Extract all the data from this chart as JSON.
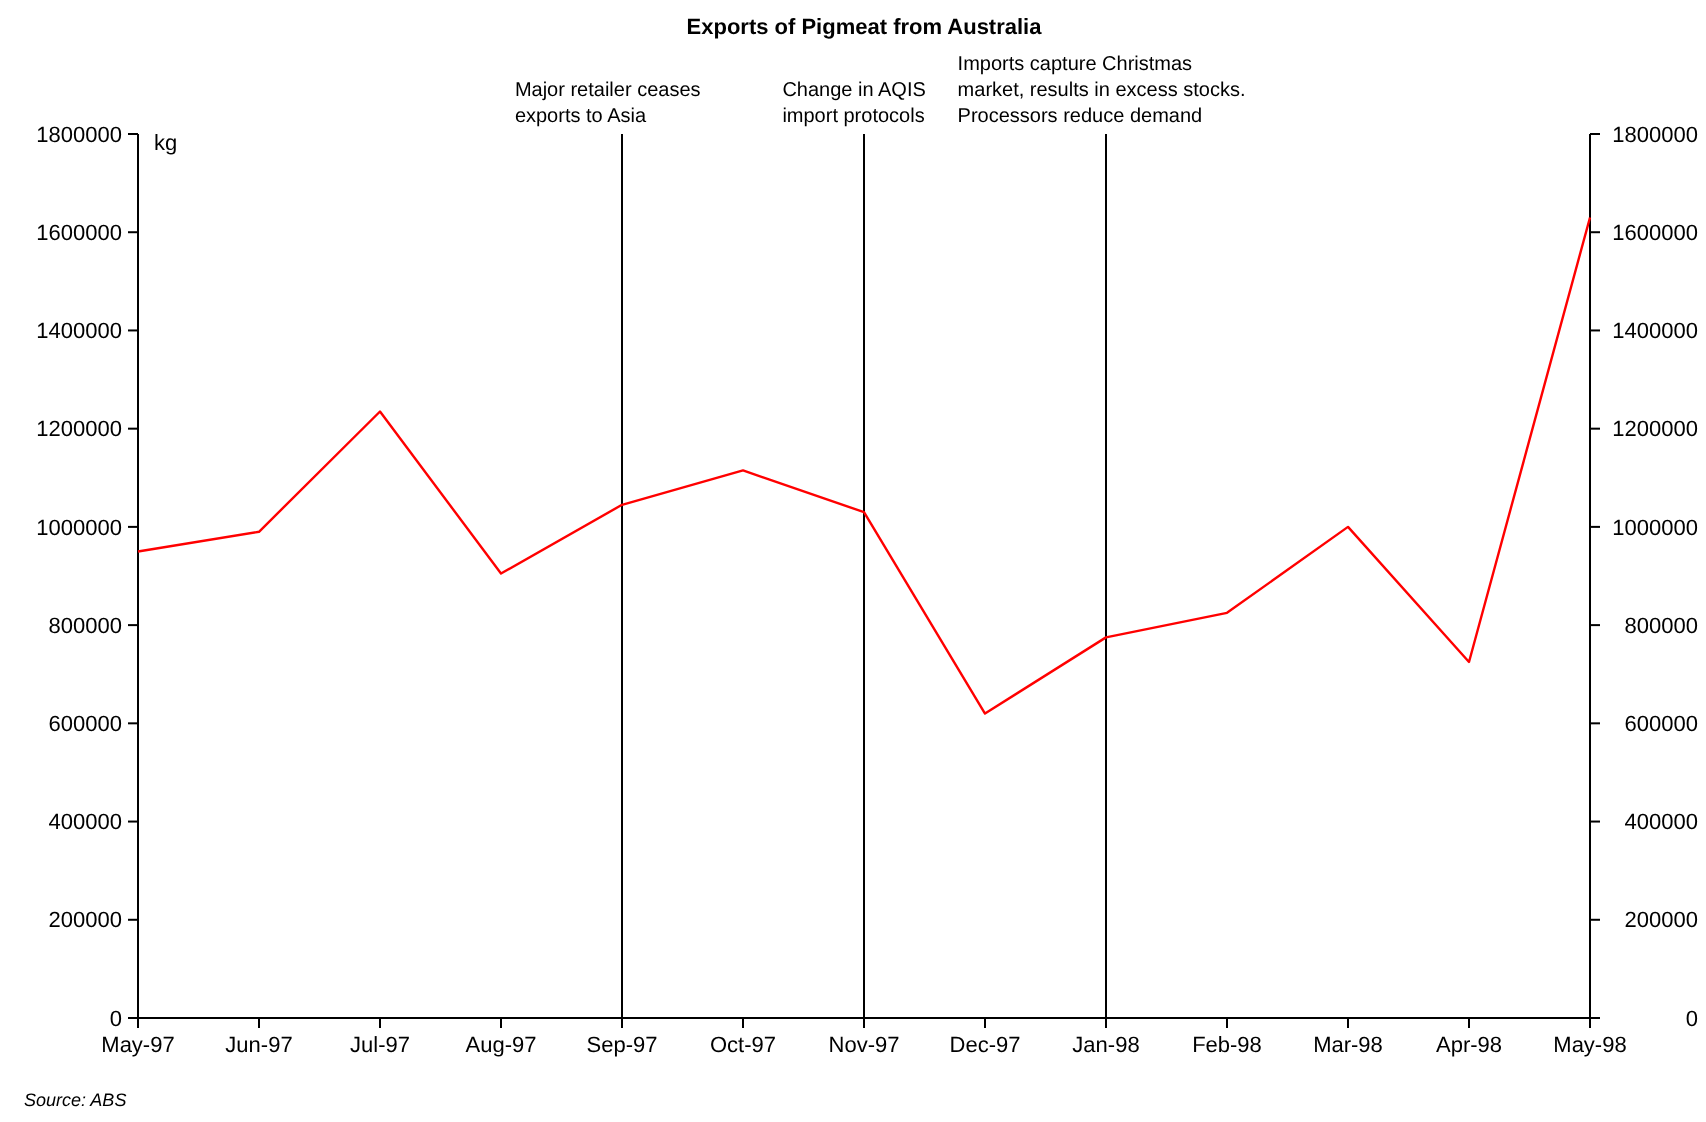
{
  "chart_data": {
    "type": "line",
    "title": "Exports of Pigmeat from Australia",
    "ylabel": "kg",
    "categories": [
      "May-97",
      "Jun-97",
      "Jul-97",
      "Aug-97",
      "Sep-97",
      "Oct-97",
      "Nov-97",
      "Dec-97",
      "Jan-98",
      "Feb-98",
      "Mar-98",
      "Apr-98",
      "May-98"
    ],
    "series": [
      {
        "color": "#ff0000",
        "values": [
          950000,
          990000,
          1235000,
          905000,
          1045000,
          1115000,
          1030000,
          620000,
          775000,
          825000,
          1000000,
          725000,
          1630000
        ]
      }
    ],
    "ylim": [
      0,
      1800000
    ],
    "yticks": [
      0,
      200000,
      400000,
      600000,
      800000,
      1000000,
      1200000,
      1400000,
      1600000,
      1800000
    ],
    "y2lim": [
      0,
      1800000
    ],
    "y2ticks": [
      0,
      200000,
      400000,
      600000,
      800000,
      1000000,
      1200000,
      1400000,
      1600000,
      1800000
    ],
    "ref_lines": [
      {
        "axis": "x",
        "value": "Sep-97",
        "label": "Major retailer ceases\nexports to Asia",
        "color": "#000000"
      },
      {
        "axis": "x",
        "value": "Nov-97",
        "label": "Change in AQIS\nimport protocols",
        "color": "#000000"
      },
      {
        "axis": "x",
        "value": "Jan-98",
        "label": "Imports capture Christmas\nmarket, results in excess stocks.\nProcessors reduce demand",
        "color": "#000000"
      }
    ],
    "annotations": [
      "Source: ABS"
    ],
    "grid": false,
    "marker": "none",
    "line_style": "solid"
  }
}
